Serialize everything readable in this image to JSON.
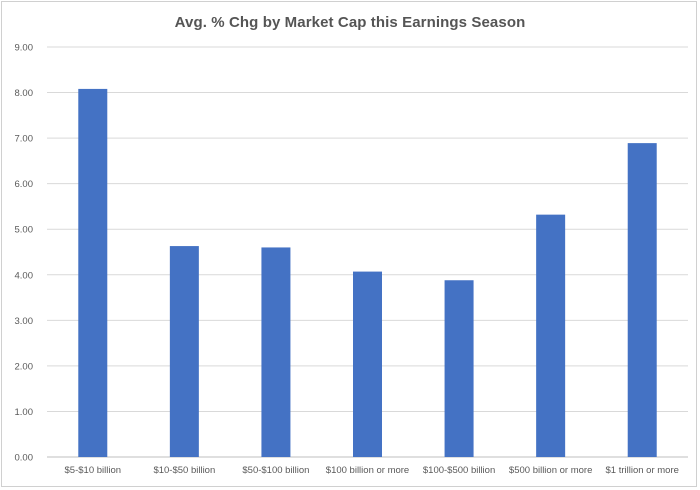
{
  "chart_data": {
    "type": "bar",
    "title": "Avg. % Chg by Market Cap this Earnings Season",
    "xlabel": "",
    "ylabel": "",
    "categories": [
      "$5-$10 billion",
      "$10-$50 billion",
      "$50-$100 billion",
      "$100 billion or more",
      "$100-$500 billion",
      "$500 billion or more",
      "$1 trillion or more"
    ],
    "values": [
      8.08,
      4.63,
      4.6,
      4.07,
      3.88,
      5.32,
      6.89
    ],
    "ylim": [
      0,
      9
    ],
    "yticks": [
      "0.00",
      "1.00",
      "2.00",
      "3.00",
      "4.00",
      "5.00",
      "6.00",
      "7.00",
      "8.00",
      "9.00"
    ],
    "grid": true,
    "legend": "none",
    "colors": {
      "bar": "#4472C4",
      "grid": "#d9d9d9",
      "axis": "#bfbfbf"
    }
  }
}
